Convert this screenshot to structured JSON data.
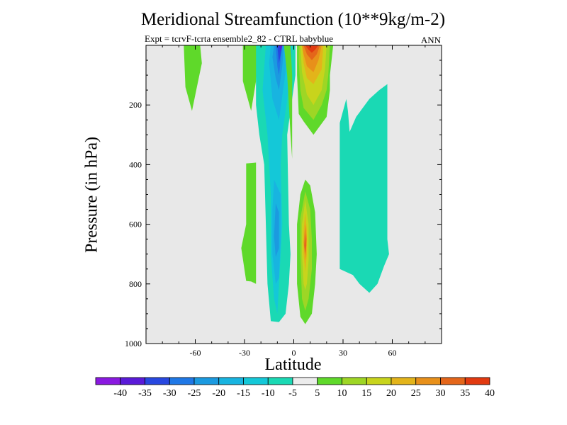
{
  "chart_data": {
    "type": "contour",
    "title": "Meridional Streamfunction (10**9kg/m-2)",
    "subtitle": "Expt = tcrvF-tcrta  ensemble2_82 - CTRL babyblue",
    "season": "ANN",
    "xlabel": "Latitude",
    "ylabel": "Pressure (in hPa)",
    "xlim": [
      -90,
      90
    ],
    "ylim": [
      1000,
      0
    ],
    "x_ticks": [
      -60,
      -30,
      0,
      30,
      60
    ],
    "y_ticks": [
      200,
      400,
      600,
      800,
      1000
    ],
    "background_color": "#e8e8e8",
    "colorbar": {
      "labels": [
        "-40",
        "-35",
        "-30",
        "-25",
        "-20",
        "-15",
        "-10",
        "-5",
        "5",
        "10",
        "15",
        "20",
        "25",
        "30",
        "35",
        "40"
      ],
      "colors": [
        "#8a19e0",
        "#5a1ad8",
        "#2848e0",
        "#1f78e6",
        "#1b9ae0",
        "#18b4e0",
        "#14c8d8",
        "#1ad9b4",
        "#ececec",
        "#5fd92a",
        "#9ed625",
        "#c8d41c",
        "#e3b41a",
        "#e8901a",
        "#e4661a",
        "#e23a10"
      ]
    },
    "regions": [
      {
        "name": "contour-pos-5-nh-upper",
        "value": 5,
        "color": "#5fd92a",
        "points": [
          [
            -31,
            -1
          ],
          [
            -22,
            -1
          ],
          [
            -23,
            120
          ],
          [
            -26,
            220
          ],
          [
            -31,
            120
          ]
        ]
      },
      {
        "name": "contour-pos-5-sh-upper",
        "value": 5,
        "color": "#5fd92a",
        "points": [
          [
            -67,
            0
          ],
          [
            -57,
            0
          ],
          [
            -56,
            60
          ],
          [
            -59,
            140
          ],
          [
            -62,
            220
          ],
          [
            -66,
            140
          ]
        ]
      },
      {
        "name": "contour-neg-5-outer",
        "value": -5,
        "color": "#1ad9b4",
        "points": [
          [
            -17,
            0
          ],
          [
            1,
            0
          ],
          [
            1,
            100
          ],
          [
            -4,
            300
          ],
          [
            -3,
            600
          ],
          [
            -2,
            700
          ],
          [
            -3,
            800
          ],
          [
            -5,
            900
          ],
          [
            -9,
            928
          ],
          [
            -14,
            925
          ],
          [
            -16,
            800
          ],
          [
            -17,
            600
          ],
          [
            -18,
            400
          ],
          [
            -21,
            300
          ],
          [
            -23,
            200
          ],
          [
            -23,
            0
          ]
        ]
      },
      {
        "name": "contour-neg-10-outer",
        "value": -10,
        "color": "#14c8d8",
        "points": [
          [
            -15,
            0
          ],
          [
            -1,
            0
          ],
          [
            -2,
            100
          ],
          [
            -7,
            300
          ],
          [
            -8,
            400
          ],
          [
            -7,
            600
          ],
          [
            -8,
            700
          ],
          [
            -9,
            800
          ],
          [
            -10,
            900
          ],
          [
            -12,
            850
          ],
          [
            -14,
            700
          ],
          [
            -14,
            500
          ],
          [
            -16,
            300
          ],
          [
            -19,
            150
          ],
          [
            -17,
            0
          ]
        ]
      },
      {
        "name": "contour-neg-15-core",
        "value": -15,
        "color": "#18b4e0",
        "points": [
          [
            -14,
            0
          ],
          [
            -4,
            0
          ],
          [
            -5,
            90
          ],
          [
            -9,
            250
          ],
          [
            -13,
            180
          ],
          [
            -15,
            60
          ]
        ]
      },
      {
        "name": "contour-neg-15-lower",
        "value": -15,
        "color": "#18b4e0",
        "points": [
          [
            -12,
            450
          ],
          [
            -8,
            500
          ],
          [
            -8,
            650
          ],
          [
            -9,
            780
          ],
          [
            -11,
            800
          ],
          [
            -13,
            700
          ],
          [
            -13,
            550
          ]
        ]
      },
      {
        "name": "contour-neg-20-core",
        "value": -20,
        "color": "#1b9ae0",
        "points": [
          [
            -12,
            0
          ],
          [
            -6,
            0
          ],
          [
            -7,
            70
          ],
          [
            -9,
            150
          ],
          [
            -11,
            110
          ],
          [
            -13,
            40
          ]
        ]
      },
      {
        "name": "contour-neg-20-lower",
        "value": -20,
        "color": "#1b9ae0",
        "points": [
          [
            -11,
            530
          ],
          [
            -9,
            560
          ],
          [
            -9,
            680
          ],
          [
            -11,
            710
          ],
          [
            -12,
            640
          ]
        ]
      },
      {
        "name": "contour-neg-25-core",
        "value": -25,
        "color": "#1f78e6",
        "points": [
          [
            -11,
            0
          ],
          [
            -7,
            0
          ],
          [
            -8,
            50
          ],
          [
            -9,
            100
          ],
          [
            -10,
            70
          ]
        ]
      },
      {
        "name": "contour-neg-30-core",
        "value": -30,
        "color": "#2848e0",
        "points": [
          [
            -10,
            0
          ],
          [
            -7,
            0
          ],
          [
            -8,
            30
          ],
          [
            -9,
            60
          ]
        ]
      },
      {
        "name": "contour-neg-35-core",
        "value": -35,
        "color": "#5a1ad8",
        "points": [
          [
            -9,
            0
          ],
          [
            -7,
            0
          ],
          [
            -8,
            20
          ]
        ]
      },
      {
        "name": "contour-pos-5-nh-lower-upper",
        "value": 5,
        "color": "#5fd92a",
        "points": [
          [
            -29,
            396
          ],
          [
            -23,
            393
          ],
          [
            -23,
            500
          ],
          [
            -23,
            800
          ],
          [
            -26,
            792
          ],
          [
            -29,
            790
          ],
          [
            -32,
            680
          ],
          [
            -29,
            600
          ]
        ]
      },
      {
        "name": "contour-pos-5-nh-streak",
        "value": 5,
        "color": "#5fd92a",
        "points": [
          [
            -6,
            0
          ],
          [
            -2,
            0
          ],
          [
            -1,
            100
          ],
          [
            -1,
            300
          ],
          [
            -1,
            380
          ],
          [
            -2,
            300
          ],
          [
            -4,
            100
          ]
        ]
      },
      {
        "name": "contour-pos-5-upper-cell",
        "value": 5,
        "color": "#5fd92a",
        "points": [
          [
            2,
            0
          ],
          [
            24,
            0
          ],
          [
            22,
            100
          ],
          [
            22,
            150
          ],
          [
            20,
            240
          ],
          [
            12,
            300
          ],
          [
            6,
            255
          ],
          [
            3,
            230
          ],
          [
            2,
            100
          ]
        ]
      },
      {
        "name": "contour-pos-10-upper-cell",
        "value": 10,
        "color": "#9ed625",
        "points": [
          [
            3,
            0
          ],
          [
            22,
            0
          ],
          [
            21,
            100
          ],
          [
            20,
            150
          ],
          [
            17,
            200
          ],
          [
            12,
            250
          ],
          [
            6,
            210
          ],
          [
            4,
            150
          ],
          [
            3,
            50
          ]
        ]
      },
      {
        "name": "contour-pos-15-upper-cell",
        "value": 15,
        "color": "#c8d41c",
        "points": [
          [
            4,
            0
          ],
          [
            20,
            0
          ],
          [
            19,
            80
          ],
          [
            17,
            150
          ],
          [
            12,
            200
          ],
          [
            8,
            165
          ],
          [
            5,
            90
          ]
        ]
      },
      {
        "name": "contour-pos-20-upper-cell",
        "value": 20,
        "color": "#e3b41a",
        "points": [
          [
            5,
            0
          ],
          [
            18,
            0
          ],
          [
            17,
            80
          ],
          [
            12,
            130
          ],
          [
            8,
            110
          ],
          [
            6,
            60
          ]
        ]
      },
      {
        "name": "contour-pos-25-upper-cell",
        "value": 25,
        "color": "#e8901a",
        "points": [
          [
            5,
            0
          ],
          [
            17,
            0
          ],
          [
            15,
            50
          ],
          [
            12,
            90
          ],
          [
            8,
            70
          ],
          [
            6,
            30
          ]
        ]
      },
      {
        "name": "contour-pos-30-upper-cell",
        "value": 30,
        "color": "#e4661a",
        "points": [
          [
            6,
            0
          ],
          [
            16,
            0
          ],
          [
            14,
            30
          ],
          [
            11,
            50
          ],
          [
            8,
            30
          ]
        ]
      },
      {
        "name": "contour-pos-35-upper-cell",
        "value": 35,
        "color": "#e23a10",
        "points": [
          [
            7,
            0
          ],
          [
            15,
            0
          ],
          [
            13,
            15
          ],
          [
            11,
            25
          ],
          [
            9,
            15
          ]
        ]
      },
      {
        "name": "contour-pos-5-lower-cell",
        "value": 5,
        "color": "#5fd92a",
        "points": [
          [
            7,
            450
          ],
          [
            10,
            470
          ],
          [
            13,
            560
          ],
          [
            14,
            700
          ],
          [
            13,
            800
          ],
          [
            11,
            900
          ],
          [
            7,
            935
          ],
          [
            4,
            910
          ],
          [
            2,
            800
          ],
          [
            2,
            700
          ],
          [
            2,
            600
          ],
          [
            4,
            500
          ]
        ]
      },
      {
        "name": "contour-pos-10-lower-cell",
        "value": 10,
        "color": "#9ed625",
        "points": [
          [
            7,
            490
          ],
          [
            10,
            550
          ],
          [
            11,
            650
          ],
          [
            11,
            750
          ],
          [
            9,
            850
          ],
          [
            7,
            890
          ],
          [
            5,
            850
          ],
          [
            4,
            700
          ],
          [
            4,
            580
          ]
        ]
      },
      {
        "name": "contour-pos-15-lower-cell",
        "value": 15,
        "color": "#c8d41c",
        "points": [
          [
            7,
            520
          ],
          [
            9,
            600
          ],
          [
            9,
            720
          ],
          [
            8,
            800
          ],
          [
            7,
            820
          ],
          [
            6,
            800
          ],
          [
            5,
            700
          ],
          [
            5,
            600
          ]
        ]
      },
      {
        "name": "contour-pos-20-lower-cell",
        "value": 20,
        "color": "#e3b41a",
        "points": [
          [
            7,
            560
          ],
          [
            8,
            620
          ],
          [
            8,
            700
          ],
          [
            7,
            760
          ],
          [
            6,
            700
          ],
          [
            6,
            620
          ]
        ]
      },
      {
        "name": "contour-pos-25-lower-cell",
        "value": 25,
        "color": "#e8901a",
        "points": [
          [
            7,
            600
          ],
          [
            8,
            650
          ],
          [
            7,
            720
          ],
          [
            6,
            660
          ]
        ]
      },
      {
        "name": "contour-pos-30-lower-cell",
        "value": 30,
        "color": "#e4661a",
        "points": [
          [
            7,
            630
          ],
          [
            7.6,
            670
          ],
          [
            7,
            700
          ],
          [
            6.4,
            670
          ]
        ]
      },
      {
        "name": "contour-neg-5-sh-cell",
        "value": -5,
        "color": "#1ad9b4",
        "points": [
          [
            28,
            340
          ],
          [
            28,
            260
          ],
          [
            32,
            180
          ],
          [
            33,
            220
          ],
          [
            34,
            290
          ],
          [
            38,
            240
          ],
          [
            46,
            180
          ],
          [
            52,
            150
          ],
          [
            57,
            130
          ],
          [
            57,
            250
          ],
          [
            57,
            650
          ],
          [
            58,
            700
          ],
          [
            55,
            740
          ],
          [
            51,
            800
          ],
          [
            46,
            830
          ],
          [
            40,
            800
          ],
          [
            36,
            770
          ],
          [
            28,
            750
          ],
          [
            28,
            500
          ]
        ]
      }
    ]
  }
}
